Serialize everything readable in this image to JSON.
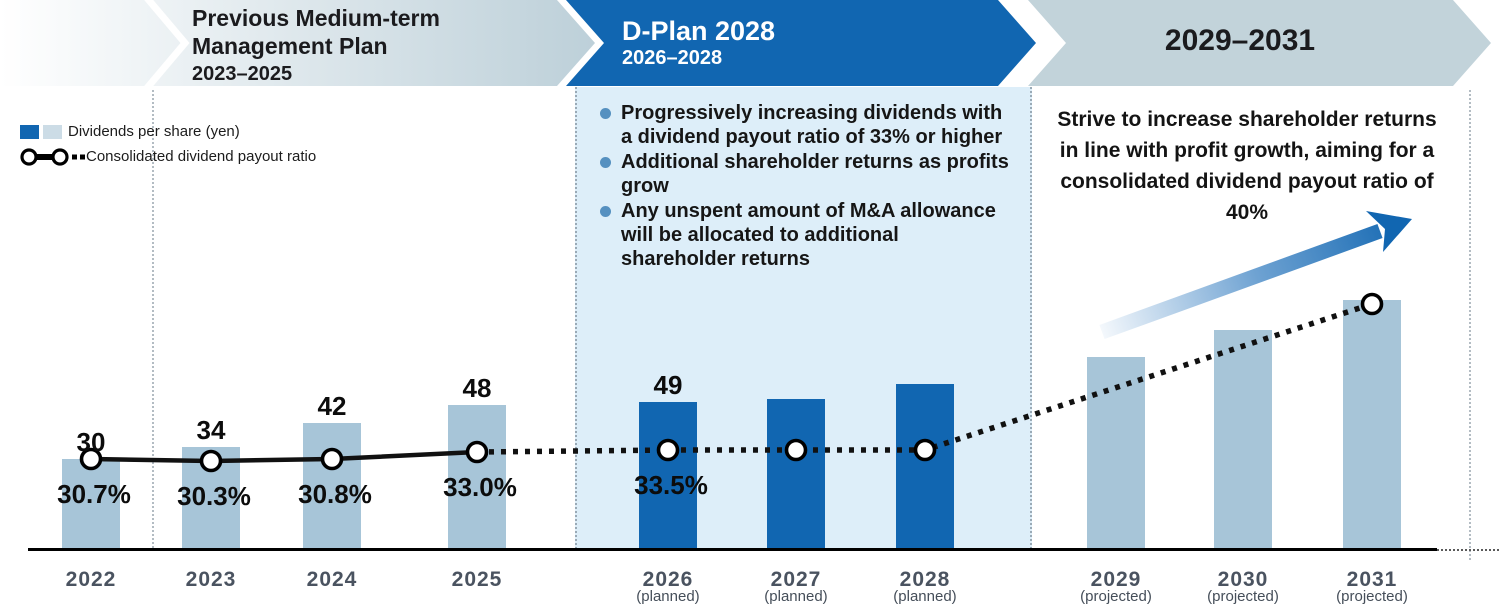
{
  "banners": [
    {
      "title_line1": "Previous Medium-term",
      "title_line2": "Management Plan",
      "subtitle": "2023–2025"
    },
    {
      "title": "D-Plan 2028",
      "subtitle": "2026–2028"
    },
    {
      "title": "2029–2031"
    }
  ],
  "legend": {
    "dividends_label": "Dividends per share (yen)",
    "ratio_label": "Consolidated dividend payout ratio"
  },
  "dplan_bullets": [
    "Progressively increasing dividends with a dividend payout ratio of 33% or higher",
    "Additional shareholder returns as profits grow",
    "Any unspent amount of M&A allowance will be allocated to additional shareholder returns"
  ],
  "outlook_note": "Strive to increase shareholder returns in line with profit growth, aiming for a consolidated dividend payout ratio of 40%",
  "colors": {
    "dark_blue": "#1166b1",
    "light_bar": "#a7c5d8",
    "banner_light": "#c2d3da",
    "panel_bg": "#ddeef9",
    "bullet_dot": "#5590c0",
    "legend_light_square": "#ccdce6",
    "line_black": "#111111"
  },
  "chart_data": {
    "type": "bar+line combo",
    "title": "Dividends per share and consolidated dividend payout ratio, 2022–2031",
    "categories": [
      "2022",
      "2023",
      "2024",
      "2025",
      "2026",
      "2027",
      "2028",
      "2029",
      "2030",
      "2031"
    ],
    "category_sublabels": [
      "",
      "",
      "",
      "",
      "(planned)",
      "(planned)",
      "(planned)",
      "(projected)",
      "(projected)",
      "(projected)"
    ],
    "bar_series": {
      "name": "Dividends per share (yen)",
      "values": [
        30,
        34,
        42,
        48,
        49,
        50,
        55,
        64,
        73,
        83
      ],
      "value_labels": [
        "30",
        "34",
        "42",
        "48",
        "49",
        "",
        "",
        "",
        "",
        ""
      ],
      "value_is_estimated": [
        false,
        false,
        false,
        false,
        false,
        true,
        true,
        true,
        true,
        true
      ],
      "bar_color_key": [
        "light_bar",
        "light_bar",
        "light_bar",
        "light_bar",
        "dark_blue",
        "dark_blue",
        "dark_blue",
        "light_bar",
        "light_bar",
        "light_bar"
      ]
    },
    "line_series": {
      "name": "Consolidated dividend payout ratio",
      "values": [
        30.7,
        30.3,
        30.8,
        33.0,
        33.5,
        null,
        null,
        null,
        null,
        null
      ],
      "ratio_labels": [
        "30.7%",
        "30.3%",
        "30.8%",
        "33.0%",
        "33.5%",
        "",
        "",
        "",
        "",
        ""
      ],
      "has_marker": [
        true,
        true,
        true,
        true,
        true,
        true,
        true,
        false,
        false,
        true
      ],
      "line_style": "solid from 2022 to 2025, dotted from 2025 through 2031",
      "target_note": "dotted line rises to the top of the 2031 bar, toward a 40% payout ratio"
    },
    "legend_position": "top-left",
    "grid": false
  }
}
